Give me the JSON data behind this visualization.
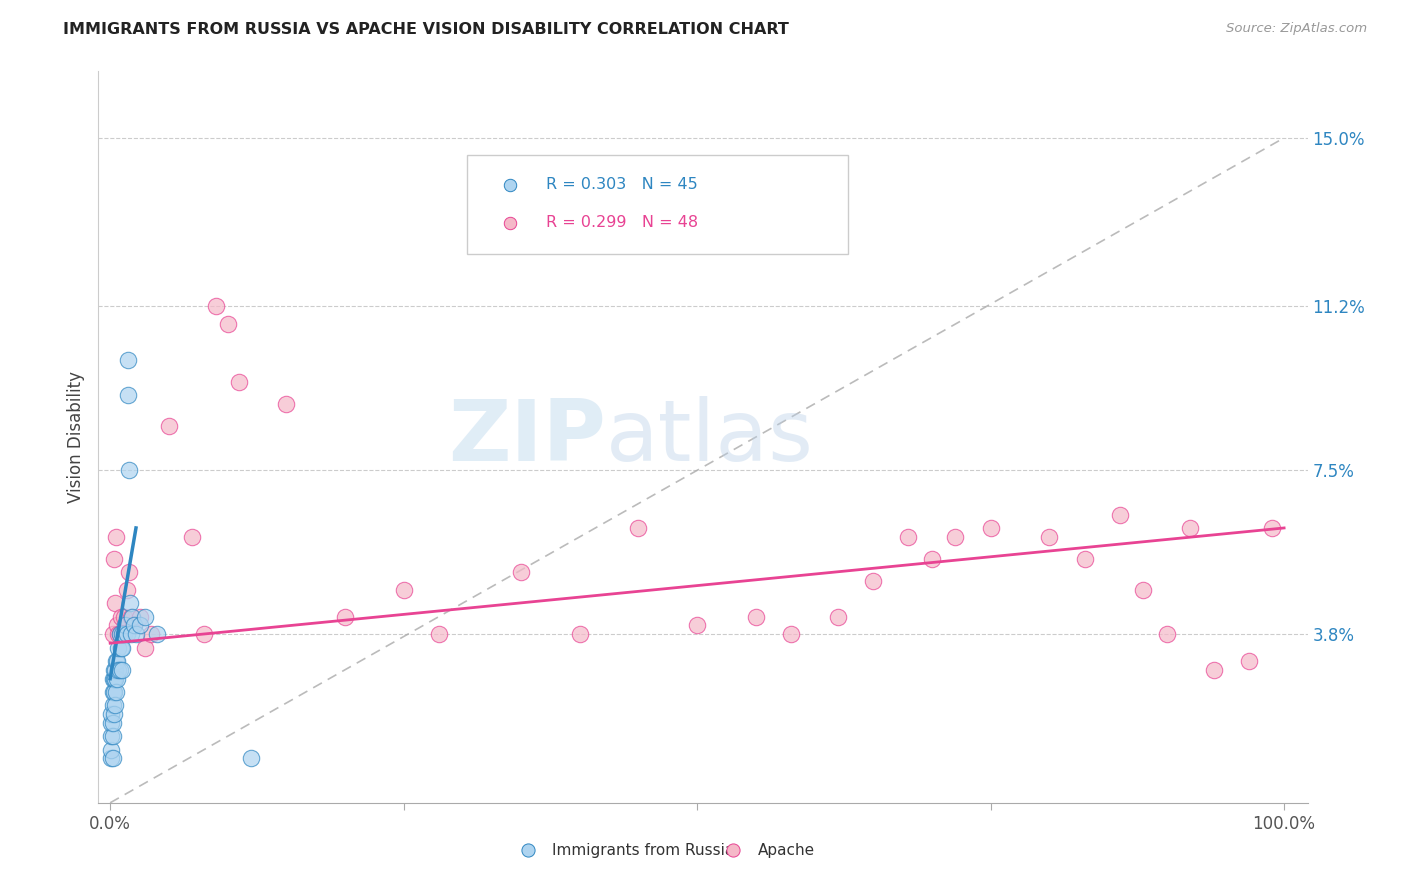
{
  "title": "IMMIGRANTS FROM RUSSIA VS APACHE VISION DISABILITY CORRELATION CHART",
  "source": "Source: ZipAtlas.com",
  "ylabel": "Vision Disability",
  "y_ticks": [
    0.038,
    0.075,
    0.112,
    0.15
  ],
  "y_tick_labels": [
    "3.8%",
    "7.5%",
    "11.2%",
    "15.0%"
  ],
  "legend_blue_r": "R = 0.303",
  "legend_blue_n": "N = 45",
  "legend_pink_r": "R = 0.299",
  "legend_pink_n": "N = 48",
  "legend_blue_label": "Immigrants from Russia",
  "legend_pink_label": "Apache",
  "blue_color": "#aed4f0",
  "pink_color": "#f5b8c8",
  "blue_line_color": "#2e86c1",
  "pink_line_color": "#e84393",
  "ref_line_color": "#aaaaaa",
  "blue_r_color": "#2e86c1",
  "pink_r_color": "#e84393",
  "blue_scatter_x": [
    0.001,
    0.001,
    0.001,
    0.001,
    0.001,
    0.002,
    0.002,
    0.002,
    0.002,
    0.002,
    0.002,
    0.003,
    0.003,
    0.003,
    0.003,
    0.004,
    0.004,
    0.004,
    0.005,
    0.005,
    0.006,
    0.006,
    0.007,
    0.007,
    0.008,
    0.008,
    0.009,
    0.01,
    0.01,
    0.01,
    0.012,
    0.013,
    0.014,
    0.015,
    0.015,
    0.016,
    0.017,
    0.018,
    0.019,
    0.02,
    0.022,
    0.025,
    0.03,
    0.04,
    0.12
  ],
  "blue_scatter_y": [
    0.01,
    0.012,
    0.015,
    0.018,
    0.02,
    0.01,
    0.015,
    0.018,
    0.022,
    0.025,
    0.028,
    0.02,
    0.025,
    0.028,
    0.03,
    0.022,
    0.028,
    0.03,
    0.025,
    0.032,
    0.028,
    0.032,
    0.03,
    0.035,
    0.03,
    0.038,
    0.035,
    0.03,
    0.035,
    0.038,
    0.038,
    0.04,
    0.038,
    0.1,
    0.092,
    0.075,
    0.045,
    0.038,
    0.042,
    0.04,
    0.038,
    0.04,
    0.042,
    0.038,
    0.01
  ],
  "pink_scatter_x": [
    0.002,
    0.003,
    0.004,
    0.005,
    0.006,
    0.007,
    0.008,
    0.009,
    0.01,
    0.012,
    0.014,
    0.016,
    0.018,
    0.02,
    0.025,
    0.03,
    0.035,
    0.05,
    0.07,
    0.08,
    0.09,
    0.1,
    0.11,
    0.15,
    0.2,
    0.25,
    0.28,
    0.35,
    0.4,
    0.45,
    0.5,
    0.55,
    0.58,
    0.62,
    0.65,
    0.68,
    0.7,
    0.72,
    0.75,
    0.8,
    0.83,
    0.86,
    0.88,
    0.9,
    0.92,
    0.94,
    0.97,
    0.99
  ],
  "pink_scatter_y": [
    0.038,
    0.055,
    0.045,
    0.06,
    0.04,
    0.038,
    0.038,
    0.042,
    0.038,
    0.042,
    0.048,
    0.052,
    0.042,
    0.04,
    0.042,
    0.035,
    0.038,
    0.085,
    0.06,
    0.038,
    0.112,
    0.108,
    0.095,
    0.09,
    0.042,
    0.048,
    0.038,
    0.052,
    0.038,
    0.062,
    0.04,
    0.042,
    0.038,
    0.042,
    0.05,
    0.06,
    0.055,
    0.06,
    0.062,
    0.06,
    0.055,
    0.065,
    0.048,
    0.038,
    0.062,
    0.03,
    0.032,
    0.062
  ],
  "watermark_zip": "ZIP",
  "watermark_atlas": "atlas",
  "xlim": [
    -0.01,
    1.02
  ],
  "ylim": [
    0.0,
    0.165
  ]
}
